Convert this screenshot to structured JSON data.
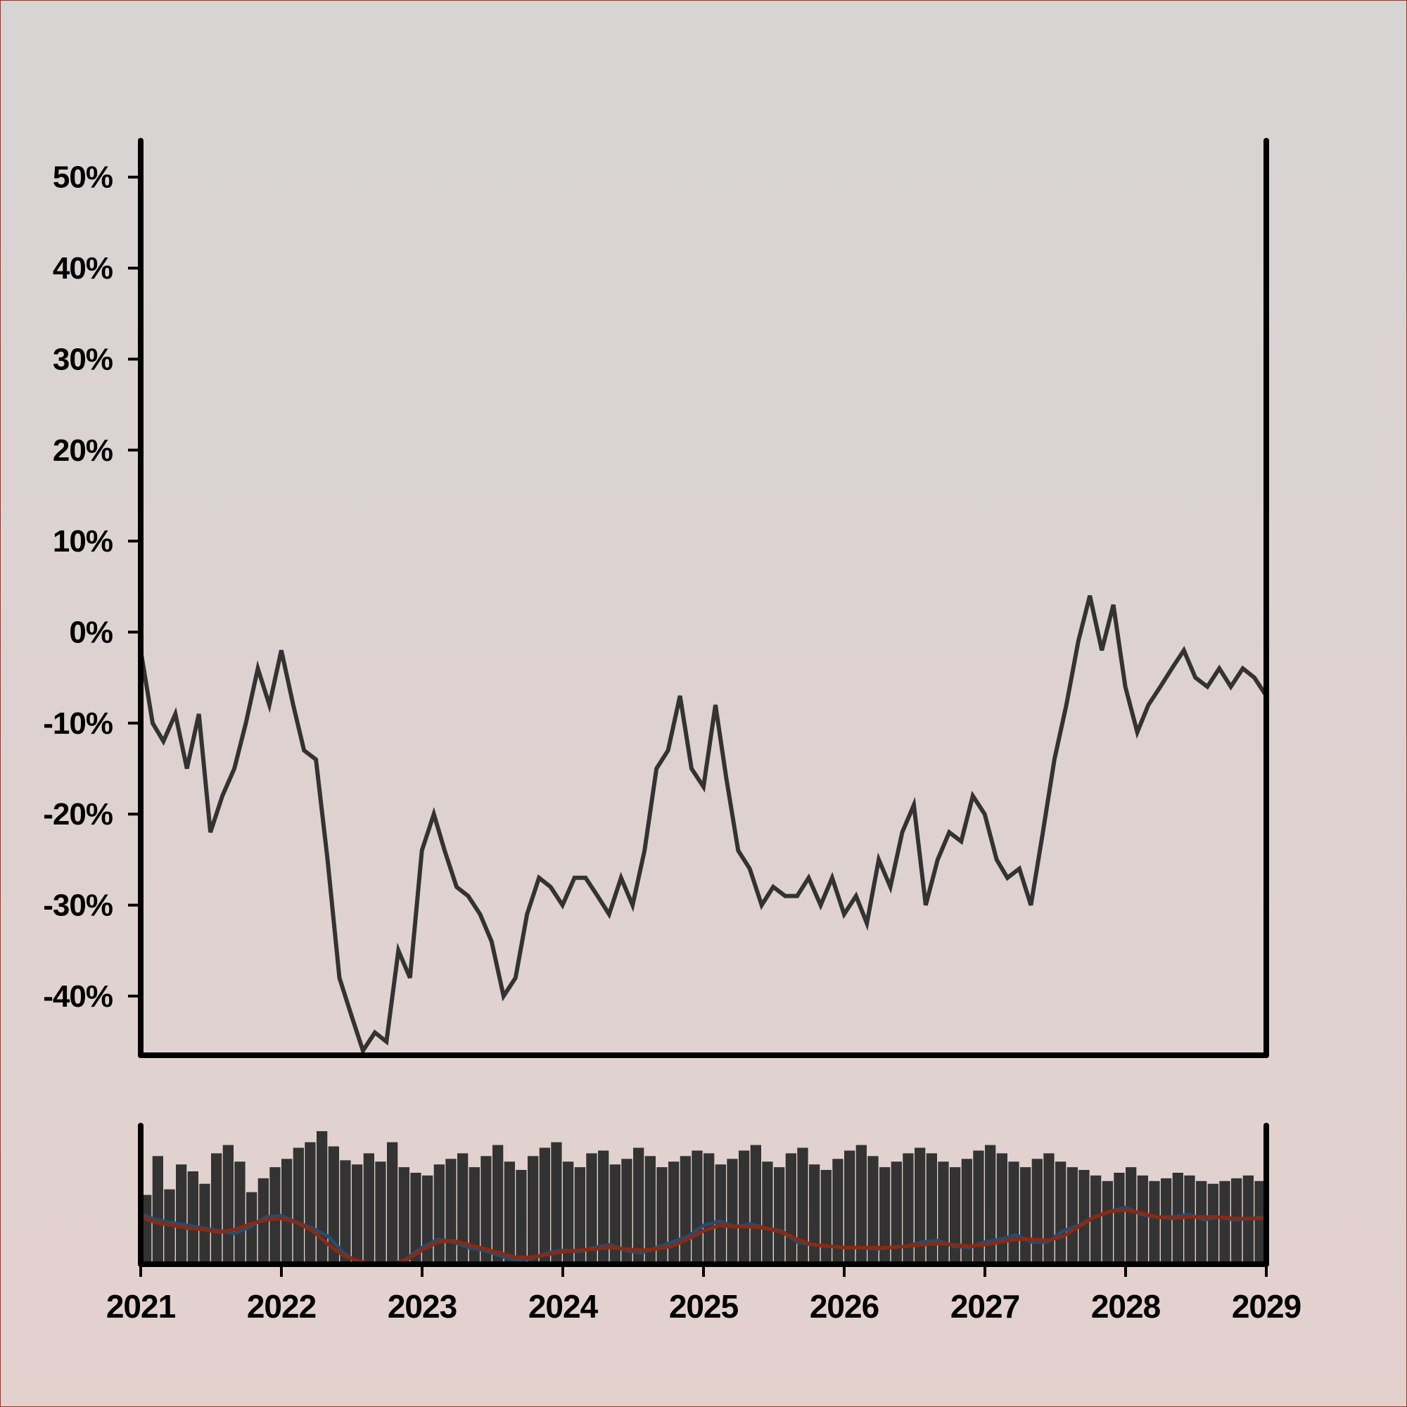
{
  "chart_data": [
    {
      "type": "line",
      "title": "",
      "xlabel": "",
      "ylabel": "",
      "xlim": [
        "2021-01-01",
        "2029-01-01"
      ],
      "ylim": [
        -46.5,
        54
      ],
      "x_ticks": [
        "2021",
        "2022",
        "2023",
        "2024",
        "2025",
        "2026",
        "2027",
        "2028",
        "2029"
      ],
      "y_ticks": [
        "50%",
        "40%",
        "30%",
        "20%",
        "10%",
        "0%",
        "-10%",
        "-20%",
        "-30%",
        "-40%"
      ],
      "y_tick_values": [
        50,
        40,
        30,
        20,
        10,
        0,
        -10,
        -20,
        -30,
        -40
      ],
      "grid": false,
      "line_color": "#333333",
      "series": [
        {
          "name": "",
          "x": [
            "2021-01-01",
            "2021-02-01",
            "2021-03-01",
            "2021-04-01",
            "2021-05-01",
            "2021-06-01",
            "2021-07-01",
            "2021-08-01",
            "2021-09-01",
            "2021-10-01",
            "2021-11-01",
            "2021-12-01",
            "2022-01-01",
            "2022-02-01",
            "2022-03-01",
            "2022-04-01",
            "2022-05-01",
            "2022-06-01",
            "2022-07-01",
            "2022-08-01",
            "2022-09-01",
            "2022-10-01",
            "2022-11-01",
            "2022-12-01",
            "2023-01-01",
            "2023-02-01",
            "2023-03-01",
            "2023-04-01",
            "2023-05-01",
            "2023-06-01",
            "2023-07-01",
            "2023-08-01",
            "2023-09-01",
            "2023-10-01",
            "2023-11-01",
            "2023-12-01",
            "2024-01-01",
            "2024-02-01",
            "2024-03-01",
            "2024-04-01",
            "2024-05-01",
            "2024-06-01",
            "2024-07-01",
            "2024-08-01",
            "2024-09-01",
            "2024-10-01",
            "2024-11-01",
            "2024-12-01",
            "2025-01-01",
            "2025-02-01",
            "2025-03-01",
            "2025-04-01",
            "2025-05-01",
            "2025-06-01",
            "2025-07-01",
            "2025-08-01",
            "2025-09-01",
            "2025-10-01",
            "2025-11-01",
            "2025-12-01",
            "2026-01-01",
            "2026-02-01",
            "2026-03-01",
            "2026-04-01",
            "2026-05-01",
            "2026-06-01",
            "2026-07-01",
            "2026-08-01",
            "2026-09-01",
            "2026-10-01",
            "2026-11-01",
            "2026-12-01",
            "2027-01-01",
            "2027-02-01",
            "2027-03-01",
            "2027-04-01",
            "2027-05-01",
            "2027-06-01",
            "2027-07-01",
            "2027-08-01",
            "2027-09-01",
            "2027-10-01",
            "2027-11-01",
            "2027-12-01",
            "2028-01-01",
            "2028-02-01",
            "2028-03-01",
            "2028-04-01",
            "2028-05-01",
            "2028-06-01",
            "2028-07-01",
            "2028-08-01",
            "2028-09-01",
            "2028-10-01",
            "2028-11-01",
            "2028-12-01",
            "2029-01-01"
          ],
          "values": [
            -2,
            -10,
            -12,
            -9,
            -15,
            -9,
            -22,
            -18,
            -15,
            -10,
            -4,
            -8,
            -2,
            -8,
            -13,
            -14,
            -25,
            -38,
            -42,
            -46,
            -44,
            -45,
            -35,
            -38,
            -24,
            -20,
            -24,
            -28,
            -29,
            -31,
            -34,
            -40,
            -38,
            -31,
            -27,
            -28,
            -30,
            -27,
            -27,
            -29,
            -31,
            -27,
            -30,
            -24,
            -15,
            -13,
            -7,
            -15,
            -17,
            -8,
            -16,
            -24,
            -26,
            -30,
            -28,
            -29,
            -29,
            -27,
            -30,
            -27,
            -31,
            -29,
            -32,
            -25,
            -28,
            -22,
            -19,
            -30,
            -25,
            -22,
            -23,
            -18,
            -20,
            -25,
            -27,
            -26,
            -30,
            -22,
            -14,
            -8,
            -1,
            4,
            -2,
            3,
            -6,
            -11,
            -8,
            -6,
            -4,
            -2,
            -5,
            -6,
            -4,
            -6,
            -4,
            -5,
            -7
          ]
        }
      ]
    },
    {
      "type": "bar",
      "title": "",
      "xlabel": "",
      "ylabel": "",
      "xlim": [
        "2021-01-01",
        "2029-01-01"
      ],
      "ylim": [
        0,
        100
      ],
      "grid": false,
      "bar_color": "#333333",
      "values": [
        50,
        78,
        54,
        72,
        67,
        58,
        80,
        86,
        74,
        52,
        62,
        70,
        76,
        84,
        88,
        96,
        85,
        75,
        72,
        80,
        74,
        88,
        70,
        66,
        64,
        72,
        76,
        80,
        70,
        78,
        86,
        74,
        68,
        78,
        84,
        88,
        74,
        70,
        80,
        82,
        72,
        76,
        84,
        78,
        70,
        74,
        78,
        82,
        80,
        72,
        76,
        82,
        86,
        74,
        70,
        80,
        84,
        72,
        68,
        76,
        82,
        86,
        78,
        70,
        74,
        80,
        84,
        80,
        74,
        70,
        76,
        82,
        86,
        80,
        74,
        70,
        76,
        80,
        74,
        70,
        68,
        64,
        60,
        66,
        70,
        64,
        60,
        62,
        66,
        64,
        60,
        58,
        60,
        62,
        64,
        60
      ],
      "overlays": [
        {
          "name": "",
          "color": "#2a4b6b",
          "values": [
            36,
            32,
            30,
            28,
            26,
            24,
            22,
            27,
            34,
            35,
            30,
            26,
            20,
            8,
            0,
            -2,
            -3,
            4,
            12,
            18,
            16,
            12,
            10,
            6,
            3,
            4,
            8,
            10,
            9,
            12,
            14,
            10,
            8,
            12,
            16,
            20,
            28,
            31,
            27,
            29,
            26,
            24,
            16,
            14,
            13,
            12,
            12,
            11,
            12,
            13,
            16,
            17,
            13,
            12,
            16,
            18,
            21,
            16,
            16,
            24,
            28,
            34,
            38,
            41,
            36,
            34,
            34,
            36,
            32,
            34,
            32,
            33,
            34
          ]
        },
        {
          "name": "",
          "color": "#8a2a14",
          "values": [
            34,
            30,
            28,
            26,
            25,
            23,
            25,
            29,
            32,
            33,
            30,
            24,
            14,
            6,
            2,
            0,
            0,
            3,
            10,
            16,
            17,
            14,
            11,
            8,
            5,
            5,
            7,
            9,
            10,
            11,
            12,
            11,
            10,
            11,
            13,
            18,
            24,
            28,
            27,
            27,
            26,
            23,
            18,
            14,
            13,
            12,
            12,
            12,
            12,
            13,
            14,
            15,
            14,
            13,
            14,
            16,
            18,
            18,
            17,
            20,
            27,
            34,
            38,
            39,
            37,
            34,
            33,
            34,
            34,
            34,
            33,
            33,
            33
          ]
        }
      ]
    }
  ]
}
